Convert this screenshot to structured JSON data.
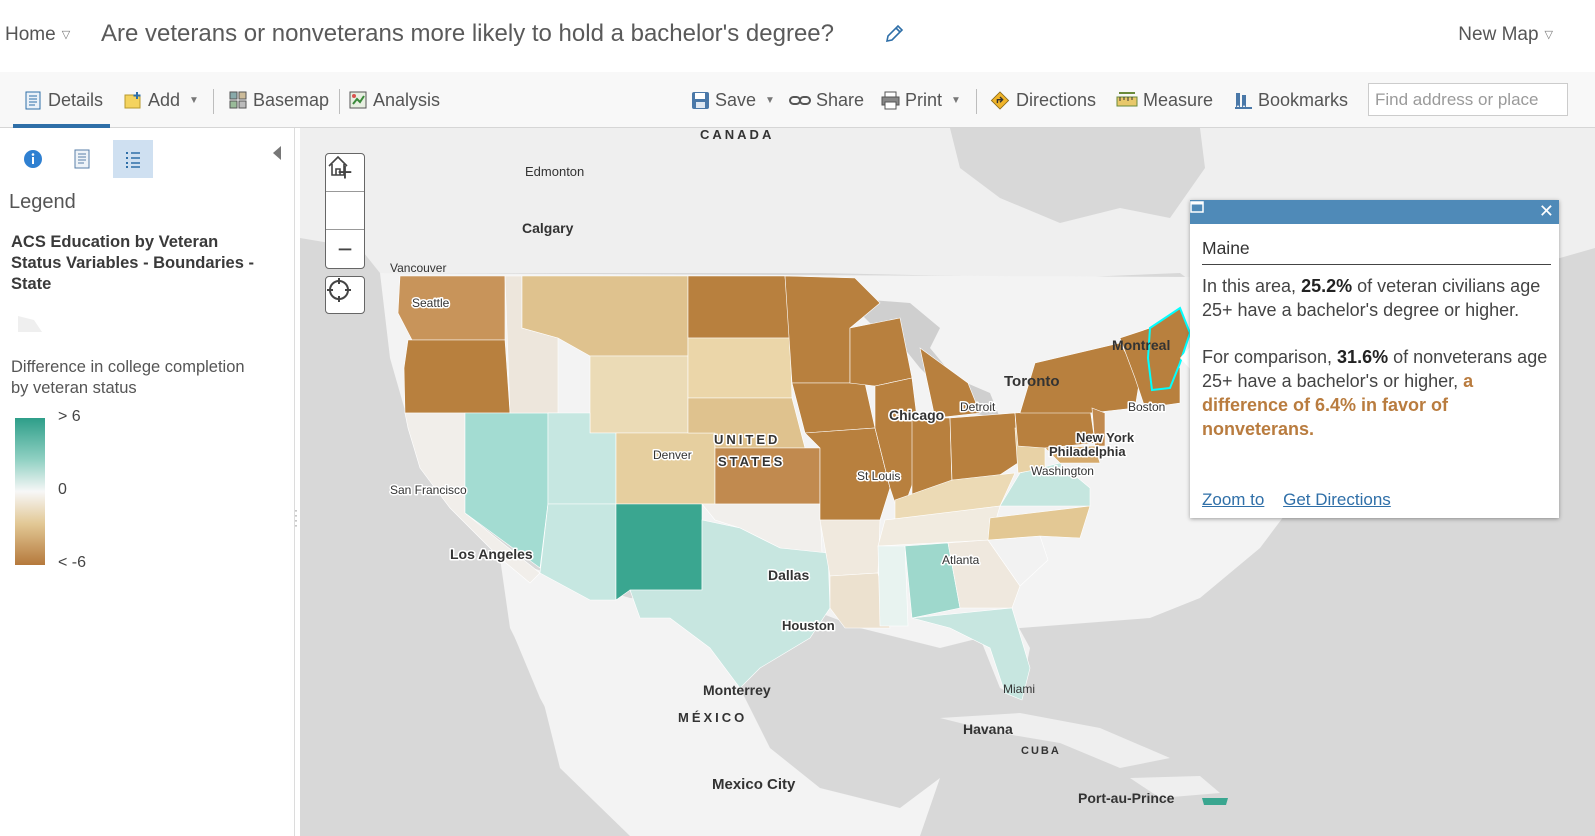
{
  "header": {
    "home_label": "Home",
    "title": "Are veterans or nonveterans more likely to hold a bachelor's degree?",
    "new_map_label": "New Map"
  },
  "toolbar": {
    "details": "Details",
    "add": "Add",
    "basemap": "Basemap",
    "analysis": "Analysis",
    "save": "Save",
    "share": "Share",
    "print": "Print",
    "directions": "Directions",
    "measure": "Measure",
    "bookmarks": "Bookmarks",
    "search_placeholder": "Find address or place"
  },
  "side_panel": {
    "legend_heading": "Legend",
    "layer_title": "ACS Education by Veteran Status Variables - Boundaries - State",
    "field_label": "Difference in college completion by veteran status",
    "ramp": {
      "high": "> 6",
      "mid": "0",
      "low": "< -6"
    }
  },
  "map_labels": {
    "canada": "CANADA",
    "edmonton": "Edmonton",
    "calgary": "Calgary",
    "vancouver": "Vancouver",
    "seattle": "Seattle",
    "montreal": "Montreal",
    "toronto": "Toronto",
    "chicago": "Chicago",
    "detroit": "Detroit",
    "boston": "Boston",
    "new_york": "New York",
    "philadelphia": "Philadelphia",
    "washington": "Washington",
    "united": "UNITED",
    "states": "STATES",
    "denver": "Denver",
    "st_louis": "St Louis",
    "san_francisco": "San Francisco",
    "los_angeles": "Los Angeles",
    "dallas": "Dallas",
    "houston": "Houston",
    "atlanta": "Atlanta",
    "miami": "Miami",
    "monterrey": "Monterrey",
    "mexico": "MÉXICO",
    "havana": "Havana",
    "cuba": "CUBA",
    "mexico_city": "Mexico City",
    "port_au_prince": "Port-au-Prince"
  },
  "popup": {
    "title": "Maine",
    "para1_pre": "In this area, ",
    "veteran_pct": "25.2%",
    "para1_post": " of veteran civilians age 25+ have a bachelor's degree or higher.",
    "para2_pre": "For comparison, ",
    "nonveteran_pct": "31.6%",
    "para2_mid": " of nonveterans age 25+ have a bachelor's or higher, ",
    "difference_text": "a difference of 6.4% in favor of nonveterans.",
    "zoom_to": "Zoom to",
    "get_directions": "Get Directions"
  },
  "colors": {
    "accent": "#2f6fa8",
    "popup_header": "#4f8ab8",
    "ramp_high": "#2e9e89",
    "ramp_mid": "#f7f7f7",
    "ramp_low": "#b5793c",
    "selection": "#00ffff"
  }
}
